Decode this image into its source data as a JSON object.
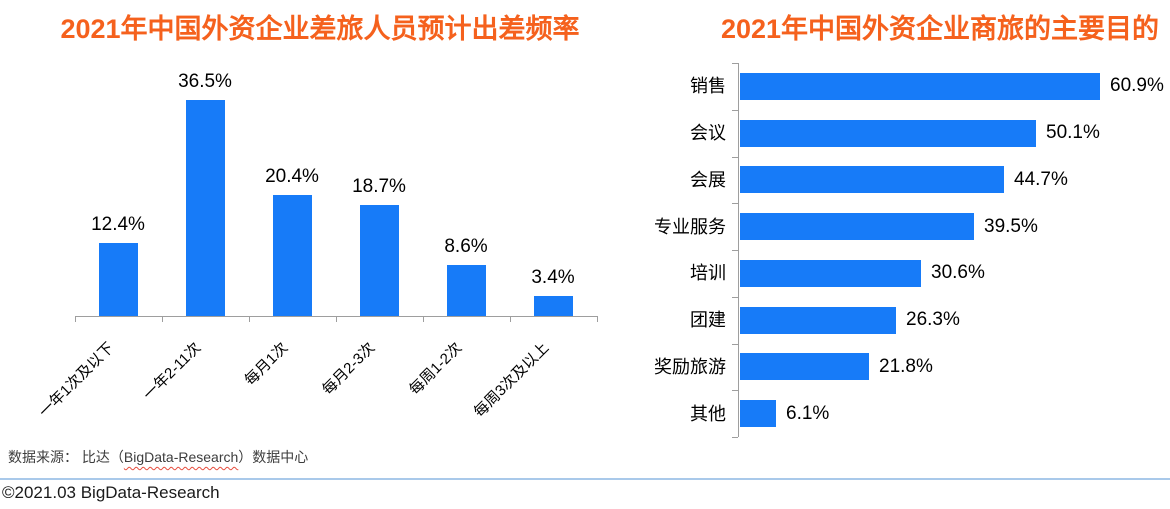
{
  "chart_data": [
    {
      "type": "bar",
      "orientation": "vertical",
      "title": "2021年中国外资企业差旅人员预计出差频率",
      "categories": [
        "一年1次及以下",
        "一年2-11次",
        "每月1次",
        "每月2-3次",
        "每周1-2次",
        "每周3次及以上"
      ],
      "values": [
        12.4,
        36.5,
        20.4,
        18.7,
        8.6,
        3.4
      ],
      "data_labels": [
        "12.4%",
        "36.5%",
        "20.4%",
        "18.7%",
        "8.6%",
        "3.4%"
      ],
      "unit": "%",
      "xlabel": "",
      "ylabel": "",
      "ylim": [
        0,
        40
      ],
      "grid": false,
      "legend": "none"
    },
    {
      "type": "bar",
      "orientation": "horizontal",
      "title": "2021年中国外资企业商旅的主要目的",
      "categories": [
        "销售",
        "会议",
        "会展",
        "专业服务",
        "培训",
        "团建",
        "奖励旅游",
        "其他"
      ],
      "values": [
        60.9,
        50.1,
        44.7,
        39.5,
        30.6,
        26.3,
        21.8,
        6.1
      ],
      "data_labels": [
        "60.9%",
        "50.1%",
        "44.7%",
        "39.5%",
        "30.6%",
        "26.3%",
        "21.8%",
        "6.1%"
      ],
      "unit": "%",
      "xlabel": "",
      "ylabel": "",
      "xlim": [
        0,
        70
      ],
      "grid": false,
      "legend": "none"
    }
  ],
  "footer": {
    "source_prefix": "数据来源： 比达（",
    "source_underlined": "BigData-Research",
    "source_suffix": "）数据中心",
    "copyright": "©2021.03 BigData-Research"
  },
  "style": {
    "page_background": "#FFFFFF",
    "bar_color": "#177BF8",
    "title_color": "#F5611D",
    "axis_color": "#9E9E9E",
    "label_color": "#000000",
    "source_text_color": "#3D3D3D",
    "copyright_color": "#1A1A1A",
    "divider_color": "#A9C9EA",
    "spellcheck_color": "#E74C3C"
  }
}
